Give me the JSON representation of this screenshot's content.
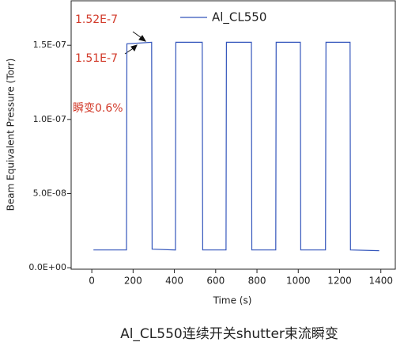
{
  "chart_data": {
    "type": "line",
    "x_label": "Time (s)",
    "y_label": "Beam Equivalent Pressure (Torr)",
    "caption": "Al_CL550连续开关shutter束流瞬变",
    "xlim": [
      -100,
      1470
    ],
    "xticks": [
      0,
      200,
      400,
      600,
      800,
      1000,
      1200,
      1400
    ],
    "ylim": [
      -1e-09,
      1.8e-07
    ],
    "yticks": [
      {
        "value": 0,
        "label": "0.0E+00"
      },
      {
        "value": 5e-08,
        "label": "5.0E-08"
      },
      {
        "value": 1e-07,
        "label": "1.0E-07"
      },
      {
        "value": 1.5e-07,
        "label": "1.5E-07"
      }
    ],
    "legend": "top",
    "annotations": [
      "1.52E-7",
      "1.51E-7",
      "瞬变0.6%"
    ],
    "series": [
      {
        "name": "Al_CL550",
        "color": "#3355bb",
        "x": [
          8,
          168,
          170,
          290,
          292,
          405,
          407,
          535,
          537,
          650,
          652,
          773,
          775,
          891,
          893,
          1010,
          1012,
          1132,
          1134,
          1251,
          1253,
          1392
        ],
        "values": [
          1.2e-08,
          1.2e-08,
          1.51e-07,
          1.52e-07,
          1.25e-08,
          1.2e-08,
          1.52e-07,
          1.52e-07,
          1.2e-08,
          1.2e-08,
          1.52e-07,
          1.52e-07,
          1.2e-08,
          1.2e-08,
          1.52e-07,
          1.52e-07,
          1.2e-08,
          1.2e-08,
          1.52e-07,
          1.52e-07,
          1.2e-08,
          1.15e-08
        ]
      }
    ]
  }
}
